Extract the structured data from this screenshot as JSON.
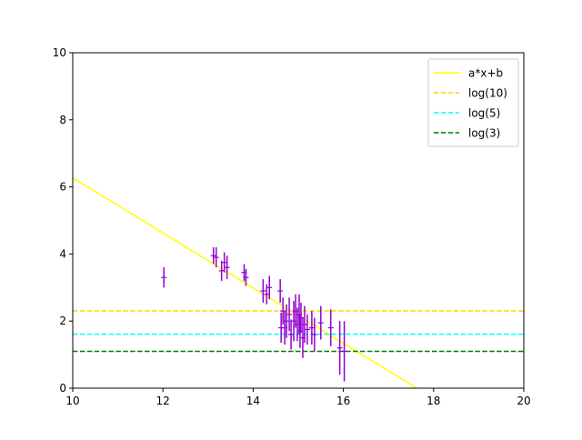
{
  "chart_data": {
    "type": "scatter",
    "title": "",
    "xlabel": "",
    "ylabel": "",
    "xlim": [
      10,
      20
    ],
    "ylim": [
      0,
      10
    ],
    "x_ticks": [
      10,
      12,
      14,
      16,
      18,
      20
    ],
    "y_ticks": [
      0,
      2,
      4,
      6,
      8,
      10
    ],
    "x_tick_labels": [
      "10",
      "12",
      "14",
      "16",
      "18",
      "20"
    ],
    "y_tick_labels": [
      "0",
      "2",
      "4",
      "6",
      "8",
      "10"
    ],
    "grid": false,
    "legend_position": "top-right",
    "lines": [
      {
        "name": "a*x+b",
        "kind": "linear",
        "color": "#ffff00",
        "style": "solid",
        "x": [
          10,
          17.63
        ],
        "y": [
          6.27,
          0
        ]
      },
      {
        "name": "log(10)",
        "kind": "horizontal",
        "color": "#ffd700",
        "style": "dashed",
        "y": 2.3026
      },
      {
        "name": "log(5)",
        "kind": "horizontal",
        "color": "#00ffff",
        "style": "dashed",
        "y": 1.6094
      },
      {
        "name": "log(3)",
        "kind": "horizontal",
        "color": "#008000",
        "style": "dashed",
        "y": 1.0986
      }
    ],
    "series": [
      {
        "color": "#9400d3",
        "marker": "+",
        "points": [
          {
            "x": 12.02,
            "y": 3.3,
            "err": 0.3
          },
          {
            "x": 13.12,
            "y": 3.95,
            "err": 0.25
          },
          {
            "x": 13.18,
            "y": 3.9,
            "err": 0.3
          },
          {
            "x": 13.3,
            "y": 3.5,
            "err": 0.3
          },
          {
            "x": 13.36,
            "y": 3.75,
            "err": 0.3
          },
          {
            "x": 13.42,
            "y": 3.6,
            "err": 0.35
          },
          {
            "x": 13.8,
            "y": 3.45,
            "err": 0.25
          },
          {
            "x": 13.84,
            "y": 3.3,
            "err": 0.25
          },
          {
            "x": 14.22,
            "y": 2.9,
            "err": 0.35
          },
          {
            "x": 14.3,
            "y": 2.8,
            "err": 0.3
          },
          {
            "x": 14.36,
            "y": 3.0,
            "err": 0.35
          },
          {
            "x": 14.6,
            "y": 2.9,
            "err": 0.35
          },
          {
            "x": 14.62,
            "y": 1.8,
            "err": 0.45
          },
          {
            "x": 14.66,
            "y": 2.3,
            "err": 0.4
          },
          {
            "x": 14.7,
            "y": 1.8,
            "err": 0.5
          },
          {
            "x": 14.74,
            "y": 2.0,
            "err": 0.5
          },
          {
            "x": 14.8,
            "y": 2.2,
            "err": 0.5
          },
          {
            "x": 14.84,
            "y": 1.6,
            "err": 0.45
          },
          {
            "x": 14.9,
            "y": 2.0,
            "err": 0.6
          },
          {
            "x": 14.94,
            "y": 2.3,
            "err": 0.5
          },
          {
            "x": 14.98,
            "y": 1.9,
            "err": 0.5
          },
          {
            "x": 15.02,
            "y": 2.2,
            "err": 0.6
          },
          {
            "x": 15.04,
            "y": 1.7,
            "err": 0.5
          },
          {
            "x": 15.06,
            "y": 2.1,
            "err": 0.45
          },
          {
            "x": 15.1,
            "y": 1.5,
            "err": 0.6
          },
          {
            "x": 15.14,
            "y": 1.9,
            "err": 0.55
          },
          {
            "x": 15.2,
            "y": 1.75,
            "err": 0.45
          },
          {
            "x": 15.3,
            "y": 1.8,
            "err": 0.5
          },
          {
            "x": 15.36,
            "y": 1.6,
            "err": 0.5
          },
          {
            "x": 15.5,
            "y": 1.95,
            "err": 0.5
          },
          {
            "x": 15.72,
            "y": 1.8,
            "err": 0.55
          },
          {
            "x": 15.92,
            "y": 1.2,
            "err": 0.8
          },
          {
            "x": 16.02,
            "y": 1.1,
            "err": 0.9
          }
        ]
      }
    ]
  }
}
